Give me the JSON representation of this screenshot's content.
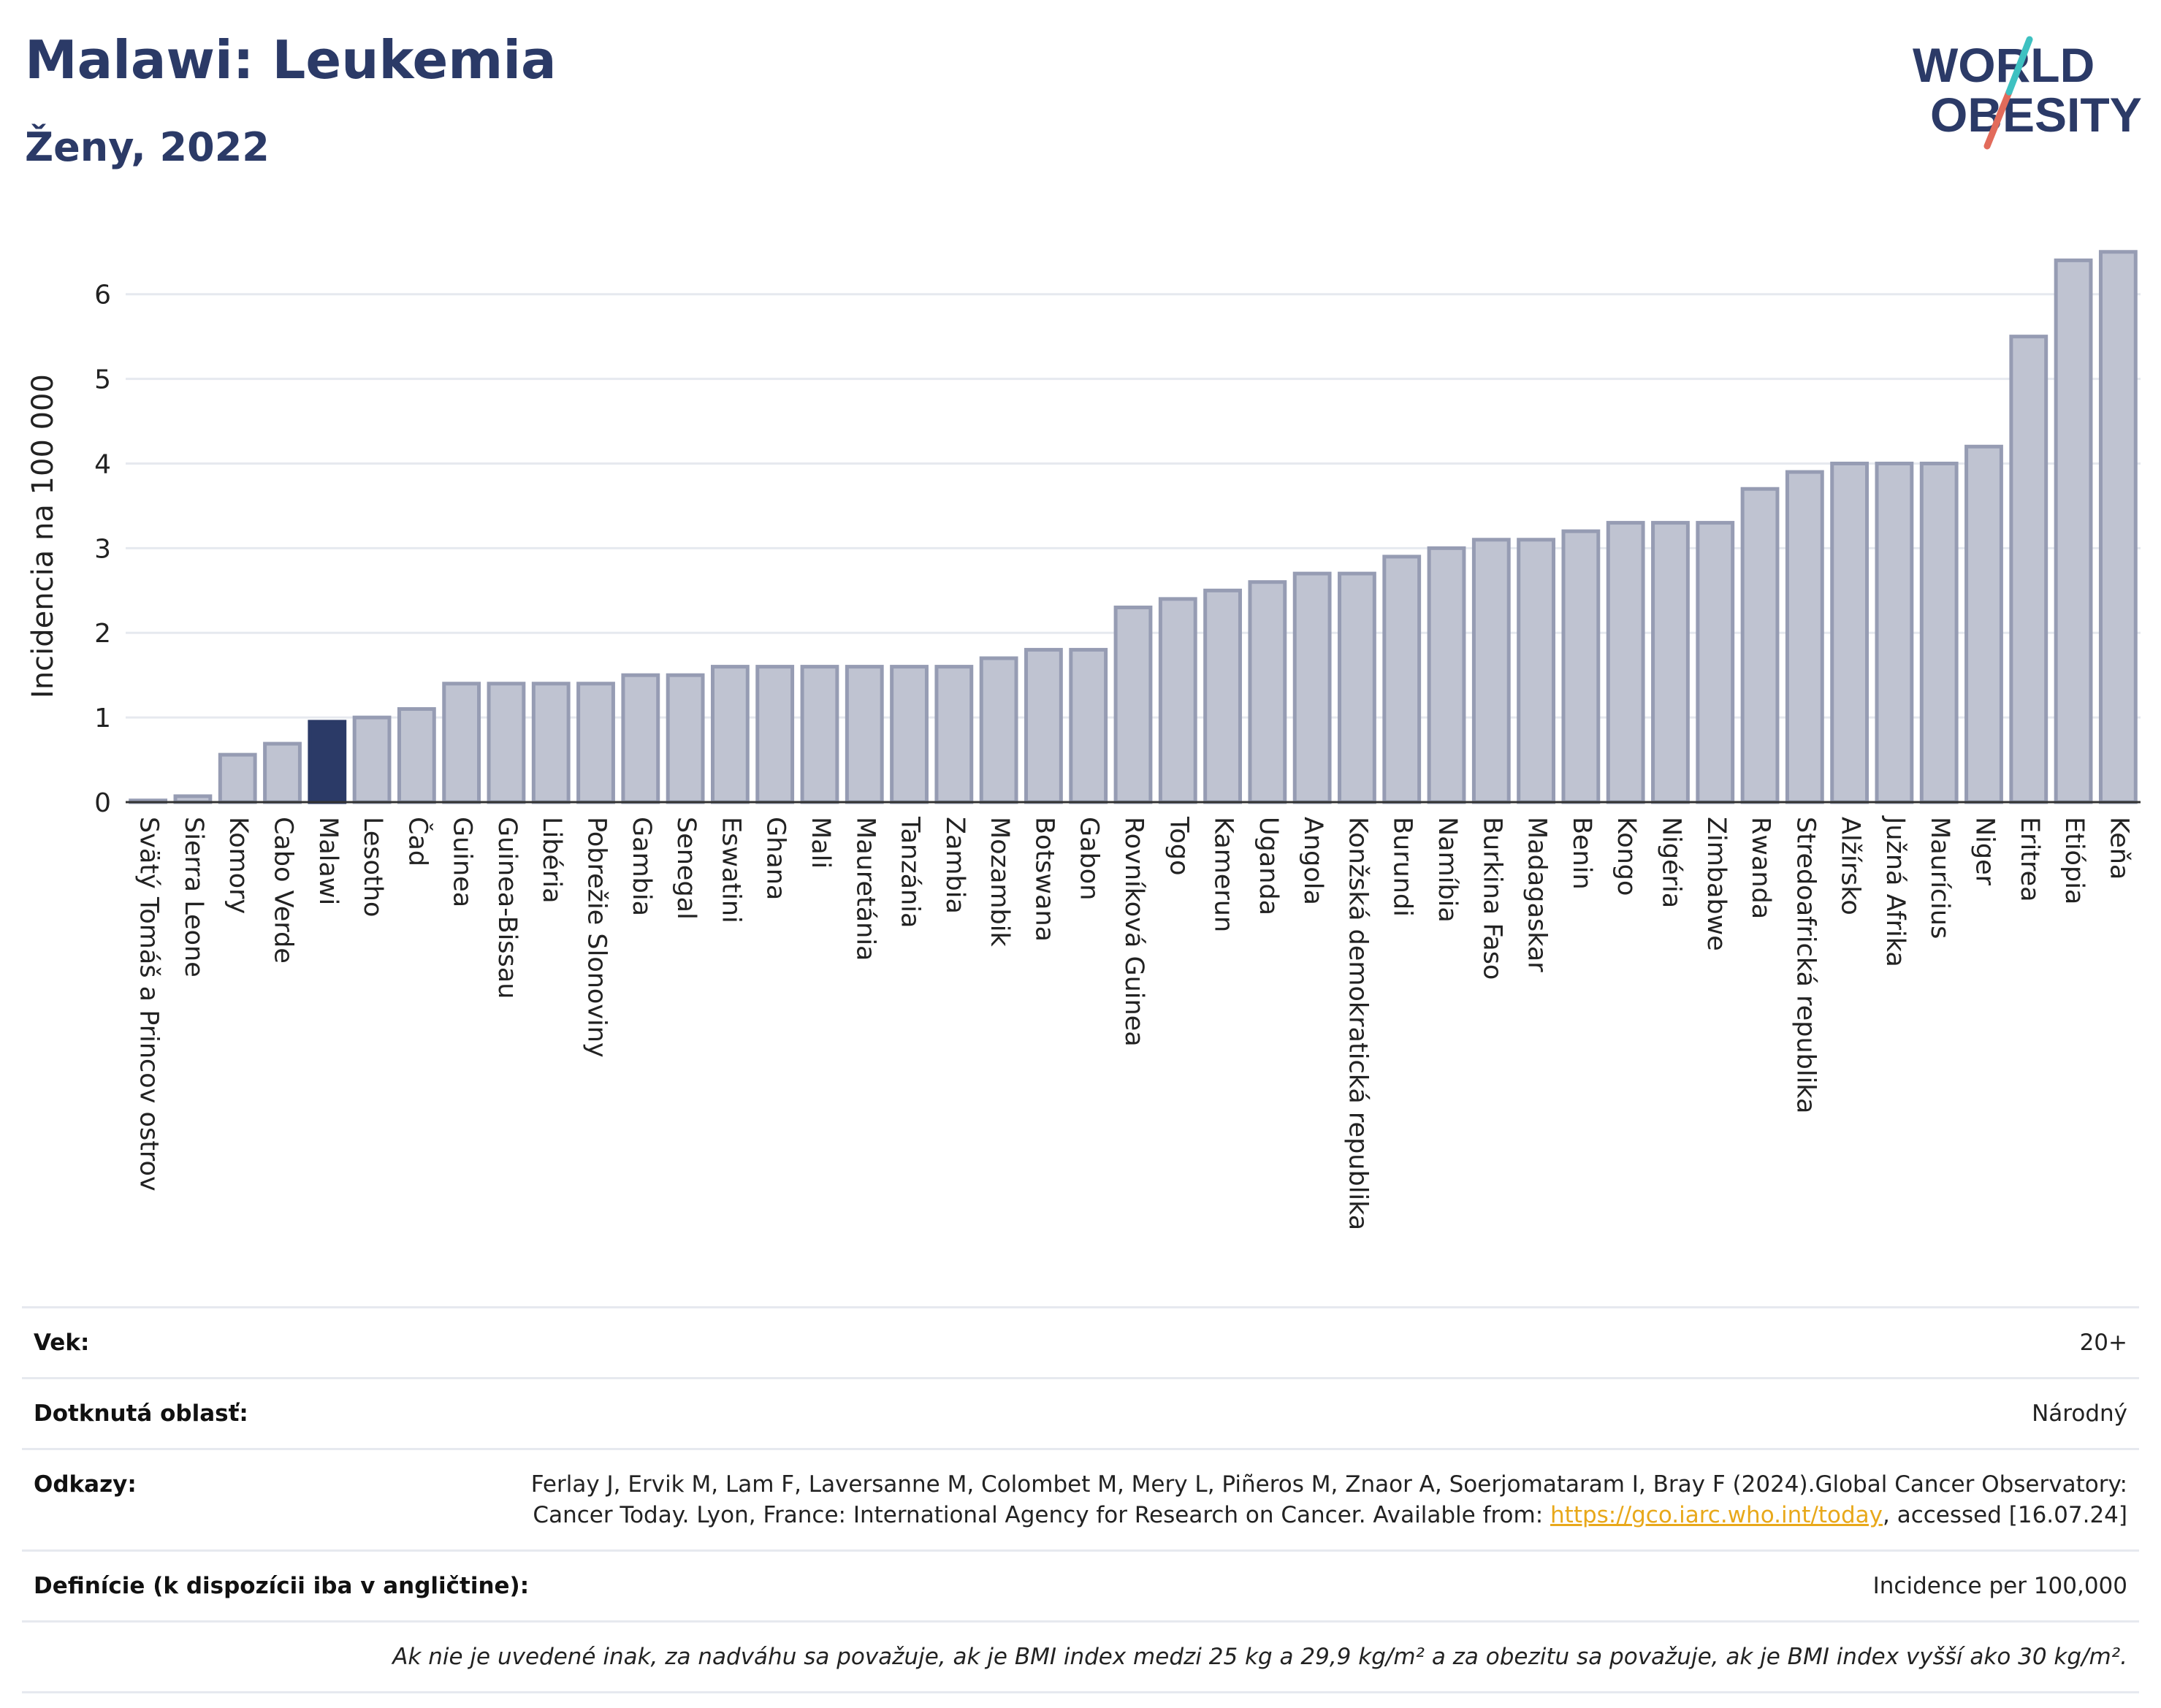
{
  "header": {
    "title": "Malawi: Leukemia",
    "subtitle": "Ženy, 2022"
  },
  "logo": {
    "line1": "WORLD",
    "line2": "OBESITY"
  },
  "colors": {
    "title": "#2b3a67",
    "bar": "#bfc3d1",
    "bar_border": "#969cb3",
    "highlight": "#2b3a67",
    "grid": "#e6e9ef"
  },
  "chart_data": {
    "type": "bar",
    "ylabel": "Incidencia na 100 000",
    "ylim": [
      0,
      6.8
    ],
    "yticks": [
      0,
      1,
      2,
      3,
      4,
      5,
      6
    ],
    "highlight": "Malawi",
    "categories": [
      "Svätý Tomáš a Princov ostrov",
      "Sierra Leone",
      "Komory",
      "Cabo Verde",
      "Malawi",
      "Lesotho",
      "Čad",
      "Guinea",
      "Guinea-Bissau",
      "Libéria",
      "Pobrežie Slonoviny",
      "Gambia",
      "Senegal",
      "Eswatini",
      "Ghana",
      "Mali",
      "Mauretánia",
      "Tanzánia",
      "Zambia",
      "Mozambik",
      "Botswana",
      "Gabon",
      "Rovníková Guinea",
      "Togo",
      "Kamerun",
      "Uganda",
      "Angola",
      "Konžská demokratická republika",
      "Burundi",
      "Namíbia",
      "Burkina Faso",
      "Madagaskar",
      "Benin",
      "Kongo",
      "Nigéria",
      "Zimbabwe",
      "Rwanda",
      "Stredoafrická republika",
      "Alžírsko",
      "Južná Afrika",
      "Maurícius",
      "Niger",
      "Eritrea",
      "Etiópia",
      "Keňa"
    ],
    "values": [
      0.02,
      0.07,
      0.56,
      0.69,
      0.95,
      1.0,
      1.1,
      1.4,
      1.4,
      1.4,
      1.4,
      1.5,
      1.5,
      1.6,
      1.6,
      1.6,
      1.6,
      1.6,
      1.6,
      1.7,
      1.8,
      1.8,
      2.3,
      2.4,
      2.5,
      2.6,
      2.7,
      2.7,
      2.9,
      3.0,
      3.1,
      3.1,
      3.2,
      3.3,
      3.3,
      3.3,
      3.7,
      3.9,
      4.0,
      4.0,
      4.0,
      4.2,
      5.5,
      6.4,
      6.5
    ]
  },
  "meta": {
    "age_label": "Vek:",
    "age_value": "20+",
    "area_label": "Dotknutá oblasť:",
    "area_value": "Národný",
    "refs_label": "Odkazy:",
    "refs_text_1": "Ferlay J, Ervik M, Lam F, Laversanne M, Colombet M, Mery L, Piñeros M, Znaor A, Soerjomataram I, Bray F (2024).Global Cancer Observatory: Cancer Today. Lyon, France: International Agency for Research on Cancer. Available from: ",
    "refs_link": "https://gco.iarc.who.int/today",
    "refs_text_2": ", accessed [16.07.24]",
    "def_label": "Definície (k dispozícii iba v angličtine):",
    "def_value": "Incidence per 100,000",
    "note": "Ak nie je uvedené inak, za nadváhu sa považuje, ak je BMI index medzi 25 kg a 29,9 kg/m² a za obezitu sa považuje, ak je BMI index vyšší ako 30 kg/m²."
  }
}
